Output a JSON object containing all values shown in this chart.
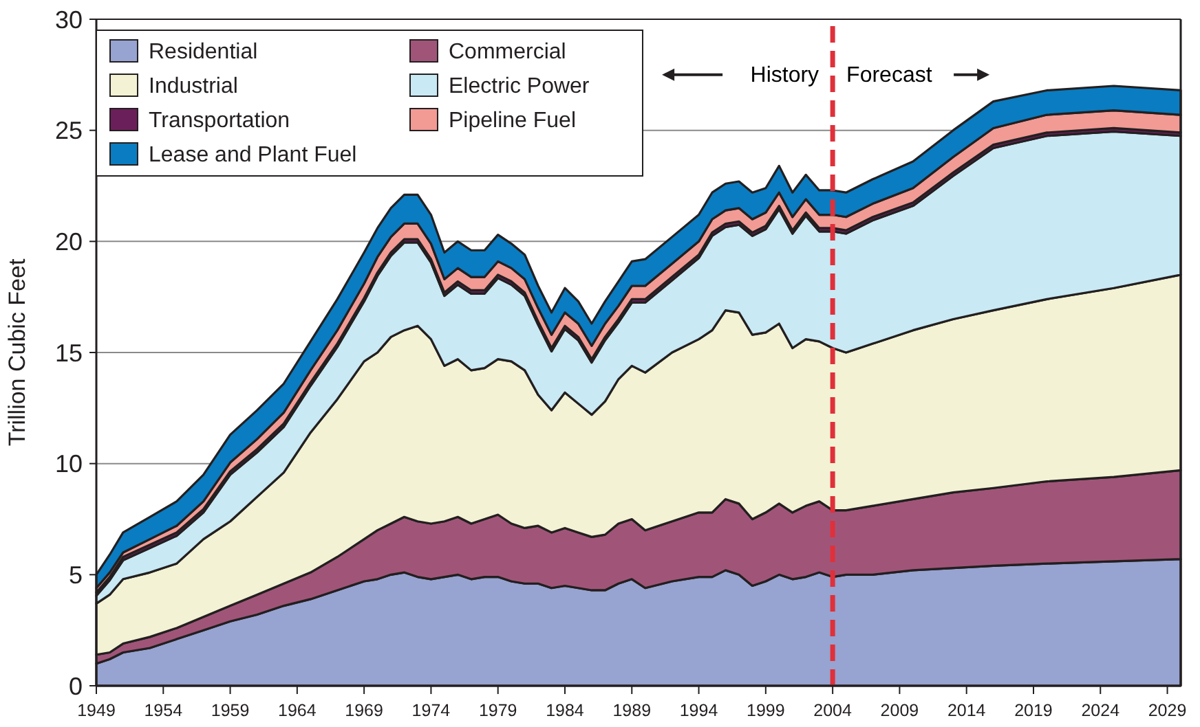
{
  "chart_data": {
    "type": "area",
    "stacked": true,
    "ylabel": "Trillion Cubic Feet",
    "x": [
      1949,
      1950,
      1951,
      1953,
      1955,
      1957,
      1959,
      1961,
      1963,
      1965,
      1967,
      1969,
      1970,
      1971,
      1972,
      1973,
      1974,
      1975,
      1976,
      1977,
      1978,
      1979,
      1980,
      1981,
      1982,
      1983,
      1984,
      1985,
      1986,
      1987,
      1988,
      1989,
      1990,
      1992,
      1994,
      1995,
      1996,
      1997,
      1998,
      1999,
      2000,
      2001,
      2002,
      2003,
      2004,
      2005,
      2007,
      2010,
      2013,
      2016,
      2020,
      2025,
      2030
    ],
    "series": [
      {
        "name": "Residential",
        "color": "#97a3d0",
        "values": [
          1.0,
          1.2,
          1.5,
          1.7,
          2.1,
          2.5,
          2.9,
          3.2,
          3.6,
          3.9,
          4.3,
          4.7,
          4.8,
          5.0,
          5.1,
          4.9,
          4.8,
          4.9,
          5.0,
          4.8,
          4.9,
          4.9,
          4.7,
          4.6,
          4.6,
          4.4,
          4.5,
          4.4,
          4.3,
          4.3,
          4.6,
          4.8,
          4.4,
          4.7,
          4.9,
          4.9,
          5.2,
          5.0,
          4.5,
          4.7,
          5.0,
          4.8,
          4.9,
          5.1,
          4.9,
          5.0,
          5.0,
          5.2,
          5.3,
          5.4,
          5.5,
          5.6,
          5.7
        ]
      },
      {
        "name": "Commercial",
        "color": "#a05578",
        "values": [
          0.4,
          0.3,
          0.4,
          0.5,
          0.5,
          0.6,
          0.7,
          0.9,
          1.0,
          1.2,
          1.5,
          1.9,
          2.2,
          2.3,
          2.5,
          2.5,
          2.5,
          2.5,
          2.6,
          2.5,
          2.6,
          2.8,
          2.6,
          2.5,
          2.6,
          2.5,
          2.6,
          2.5,
          2.4,
          2.5,
          2.7,
          2.7,
          2.6,
          2.7,
          2.9,
          2.9,
          3.2,
          3.2,
          3.0,
          3.1,
          3.2,
          3.0,
          3.2,
          3.2,
          3.0,
          2.9,
          3.1,
          3.2,
          3.4,
          3.5,
          3.7,
          3.8,
          4.0
        ]
      },
      {
        "name": "Industrial",
        "color": "#f3f2d4",
        "values": [
          2.3,
          2.6,
          2.9,
          2.9,
          2.9,
          3.5,
          3.8,
          4.4,
          5.0,
          6.3,
          7.1,
          8.0,
          8.0,
          8.4,
          8.4,
          8.8,
          8.3,
          7.0,
          7.1,
          6.9,
          6.8,
          7.0,
          7.3,
          7.1,
          5.9,
          5.5,
          6.1,
          5.8,
          5.5,
          6.0,
          6.5,
          6.9,
          7.1,
          7.6,
          7.8,
          8.2,
          8.5,
          8.6,
          8.3,
          8.1,
          8.1,
          7.4,
          7.5,
          7.2,
          7.3,
          7.1,
          7.3,
          7.6,
          7.8,
          8.0,
          8.2,
          8.5,
          8.8
        ]
      },
      {
        "name": "Electric Power",
        "color": "#c9e9f4",
        "values": [
          0.35,
          0.65,
          0.85,
          1.1,
          1.25,
          1.2,
          2.1,
          2.0,
          2.05,
          2.1,
          2.35,
          2.7,
          3.45,
          3.65,
          3.95,
          3.75,
          3.45,
          3.15,
          3.35,
          3.45,
          3.35,
          3.65,
          3.45,
          3.35,
          3.15,
          2.65,
          2.85,
          2.85,
          2.35,
          2.75,
          2.55,
          2.85,
          3.15,
          3.25,
          3.65,
          4.25,
          3.75,
          3.95,
          4.45,
          4.65,
          5.15,
          5.15,
          5.55,
          4.95,
          5.25,
          5.35,
          5.55,
          5.6,
          6.45,
          7.3,
          7.35,
          7.05,
          6.25
        ]
      },
      {
        "name": "Transportation",
        "color": "#6b1f5a",
        "values": [
          0.15,
          0.15,
          0.15,
          0.15,
          0.15,
          0.15,
          0.15,
          0.15,
          0.15,
          0.15,
          0.15,
          0.15,
          0.15,
          0.15,
          0.15,
          0.15,
          0.15,
          0.15,
          0.15,
          0.15,
          0.15,
          0.15,
          0.15,
          0.15,
          0.15,
          0.15,
          0.15,
          0.15,
          0.15,
          0.15,
          0.15,
          0.15,
          0.15,
          0.15,
          0.15,
          0.15,
          0.15,
          0.15,
          0.15,
          0.15,
          0.15,
          0.15,
          0.15,
          0.15,
          0.15,
          0.15,
          0.15,
          0.15,
          0.15,
          0.15,
          0.15,
          0.15,
          0.15
        ]
      },
      {
        "name": "Pipeline Fuel",
        "color": "#f29a94",
        "values": [
          0.2,
          0.2,
          0.2,
          0.25,
          0.3,
          0.35,
          0.4,
          0.45,
          0.5,
          0.55,
          0.6,
          0.65,
          0.7,
          0.7,
          0.7,
          0.7,
          0.7,
          0.6,
          0.6,
          0.6,
          0.6,
          0.6,
          0.6,
          0.6,
          0.6,
          0.6,
          0.6,
          0.6,
          0.6,
          0.6,
          0.6,
          0.6,
          0.6,
          0.6,
          0.6,
          0.6,
          0.6,
          0.6,
          0.6,
          0.6,
          0.6,
          0.6,
          0.6,
          0.6,
          0.6,
          0.6,
          0.6,
          0.65,
          0.7,
          0.75,
          0.8,
          0.8,
          0.8
        ]
      },
      {
        "name": "Lease and Plant Fuel",
        "color": "#0a7cc1",
        "values": [
          0.6,
          0.8,
          0.9,
          1.0,
          1.1,
          1.2,
          1.25,
          1.3,
          1.3,
          1.3,
          1.4,
          1.4,
          1.3,
          1.3,
          1.3,
          1.3,
          1.3,
          1.2,
          1.2,
          1.2,
          1.2,
          1.2,
          1.1,
          1.1,
          1.0,
          1.0,
          1.1,
          1.0,
          1.0,
          1.0,
          1.1,
          1.1,
          1.2,
          1.2,
          1.2,
          1.2,
          1.2,
          1.2,
          1.2,
          1.1,
          1.2,
          1.1,
          1.1,
          1.1,
          1.1,
          1.1,
          1.1,
          1.2,
          1.2,
          1.2,
          1.1,
          1.1,
          1.1
        ]
      }
    ],
    "xlim": [
      1949,
      2030
    ],
    "xticks": [
      1949,
      1954,
      1959,
      1964,
      1969,
      1974,
      1979,
      1984,
      1989,
      1994,
      1999,
      2004,
      2009,
      2014,
      2019,
      2024,
      2029
    ],
    "ylim": [
      0,
      30
    ],
    "yticks": [
      0,
      5,
      10,
      15,
      20,
      25,
      30
    ],
    "grid": "y",
    "legend": "top left",
    "ref_lines": [
      {
        "axis": "x",
        "value": 2004,
        "color": "#e0303a",
        "line_style": "dashed"
      }
    ],
    "annotations": [
      "History",
      "Forecast"
    ]
  }
}
